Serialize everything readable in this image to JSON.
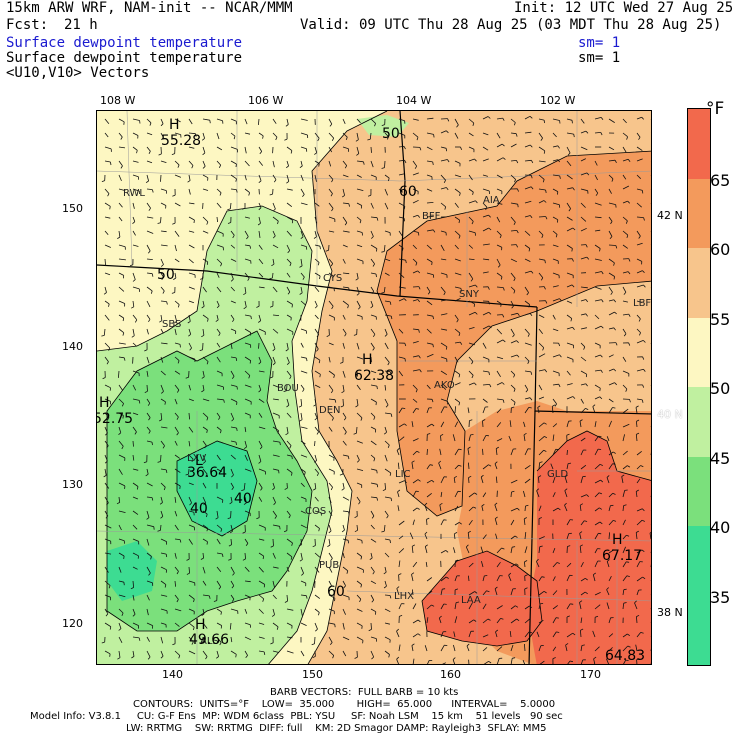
{
  "header": {
    "model": "15km ARW WRF, NAM-init -- NCAR/MMM",
    "init": "Init: 12 UTC Wed 27 Aug 25",
    "fcst_label": "Fcst:",
    "fcst_value": "21 h",
    "valid": "Valid: 09 UTC Thu 28 Aug 25 (03 MDT Thu 28 Aug 25)",
    "field1": "Surface dewpoint temperature",
    "field1_sm": "sm= 1",
    "field2": "Surface dewpoint temperature",
    "field2_sm": "sm= 1",
    "field3": "<U10,V10> Vectors"
  },
  "axes": {
    "lon_top": [
      "108 W",
      "106 W",
      "104 W",
      "102 W"
    ],
    "lat_right": [
      "42 N",
      "40 N",
      "38 N"
    ],
    "y_left": [
      "150",
      "140",
      "130",
      "120"
    ],
    "x_bottom": [
      "140",
      "150",
      "160",
      "170"
    ]
  },
  "colorbar": {
    "unit": "°F",
    "ticks": [
      "65",
      "60",
      "55",
      "50",
      "45",
      "40",
      "35"
    ],
    "colors": [
      "#f2694c",
      "#f39a5c",
      "#f7c58c",
      "#fdf7c2",
      "#c0f0a0",
      "#7be07c",
      "#3ddc92"
    ]
  },
  "map": {
    "stations": [
      "RWL",
      "BFF",
      "AIA",
      "CYS",
      "SNY",
      "LBF",
      "SBS",
      "BOU",
      "DEN",
      "AKO",
      "LIC",
      "GLD",
      "COS",
      "LXV",
      "PUB",
      "LHX",
      "LAA",
      "ALS"
    ],
    "extrema": [
      {
        "label": "H",
        "value": "55.28"
      },
      {
        "label": "H",
        "value": "62.38"
      },
      {
        "label": "H",
        "value": "52.75"
      },
      {
        "label": "L",
        "value": "36.64"
      },
      {
        "label": "H",
        "value": "67.17"
      },
      {
        "label": "H",
        "value": "49.66"
      },
      {
        "label": "",
        "value": "64.83"
      }
    ],
    "contour_labels": [
      "50",
      "60",
      "50",
      "40",
      "40",
      "60"
    ]
  },
  "footer": {
    "barb": "BARB VECTORS:  FULL BARB = 10 kts",
    "contours": "CONTOURS:  UNITS=°F    LOW=  35.000       HIGH=  65.000      INTERVAL=    5.0000",
    "model_info": "Model Info: V3.8.1     CU: G-F Ens  MP: WDM 6class  PBL: YSU     SF: Noah LSM    15 km    51 levels   90 sec",
    "model_info2": "LW: RRTMG    SW: RRTMG  DIFF: full    KM: 2D Smagor DAMP: Rayleigh3  SFLAY: MM5"
  }
}
